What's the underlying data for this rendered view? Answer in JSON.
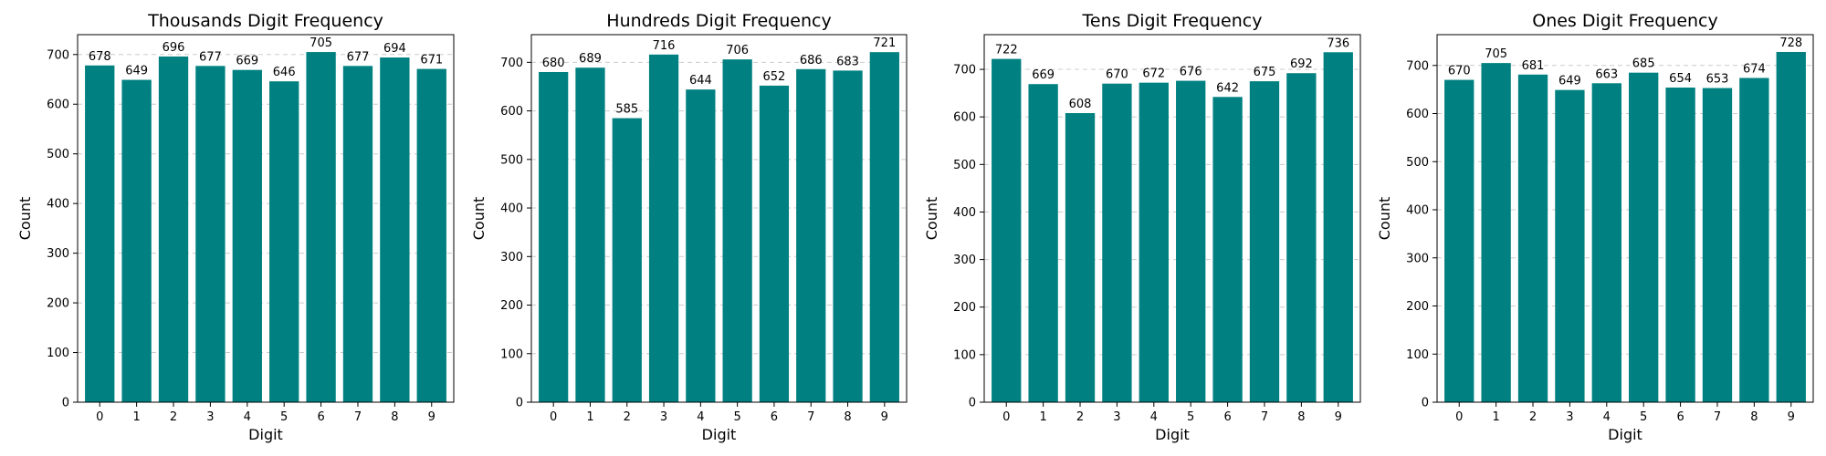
{
  "chart_data": [
    {
      "type": "bar",
      "title": "Thousands Digit Frequency",
      "xlabel": "Digit",
      "ylabel": "Count",
      "categories": [
        "0",
        "1",
        "2",
        "3",
        "4",
        "5",
        "6",
        "7",
        "8",
        "9"
      ],
      "values": [
        678,
        649,
        696,
        677,
        669,
        646,
        705,
        677,
        694,
        671
      ],
      "ylim": [
        0,
        740
      ],
      "yticks": [
        0,
        100,
        200,
        300,
        400,
        500,
        600,
        700
      ],
      "grid": "y-dashed",
      "bar_color": "#008080"
    },
    {
      "type": "bar",
      "title": "Hundreds Digit Frequency",
      "xlabel": "Digit",
      "ylabel": "Count",
      "categories": [
        "0",
        "1",
        "2",
        "3",
        "4",
        "5",
        "6",
        "7",
        "8",
        "9"
      ],
      "values": [
        680,
        689,
        585,
        716,
        644,
        706,
        652,
        686,
        683,
        721
      ],
      "ylim": [
        0,
        757
      ],
      "yticks": [
        0,
        100,
        200,
        300,
        400,
        500,
        600,
        700
      ],
      "grid": "y-dashed",
      "bar_color": "#008080"
    },
    {
      "type": "bar",
      "title": "Tens Digit Frequency",
      "xlabel": "Digit",
      "ylabel": "Count",
      "categories": [
        "0",
        "1",
        "2",
        "3",
        "4",
        "5",
        "6",
        "7",
        "8",
        "9"
      ],
      "values": [
        722,
        669,
        608,
        670,
        672,
        676,
        642,
        675,
        692,
        736
      ],
      "ylim": [
        0,
        773
      ],
      "yticks": [
        0,
        100,
        200,
        300,
        400,
        500,
        600,
        700
      ],
      "grid": "y-dashed",
      "bar_color": "#008080"
    },
    {
      "type": "bar",
      "title": "Ones Digit Frequency",
      "xlabel": "Digit",
      "ylabel": "Count",
      "categories": [
        "0",
        "1",
        "2",
        "3",
        "4",
        "5",
        "6",
        "7",
        "8",
        "9"
      ],
      "values": [
        670,
        705,
        681,
        649,
        663,
        685,
        654,
        653,
        674,
        728
      ],
      "ylim": [
        0,
        764
      ],
      "yticks": [
        0,
        100,
        200,
        300,
        400,
        500,
        600,
        700
      ],
      "grid": "y-dashed",
      "bar_color": "#008080"
    }
  ]
}
